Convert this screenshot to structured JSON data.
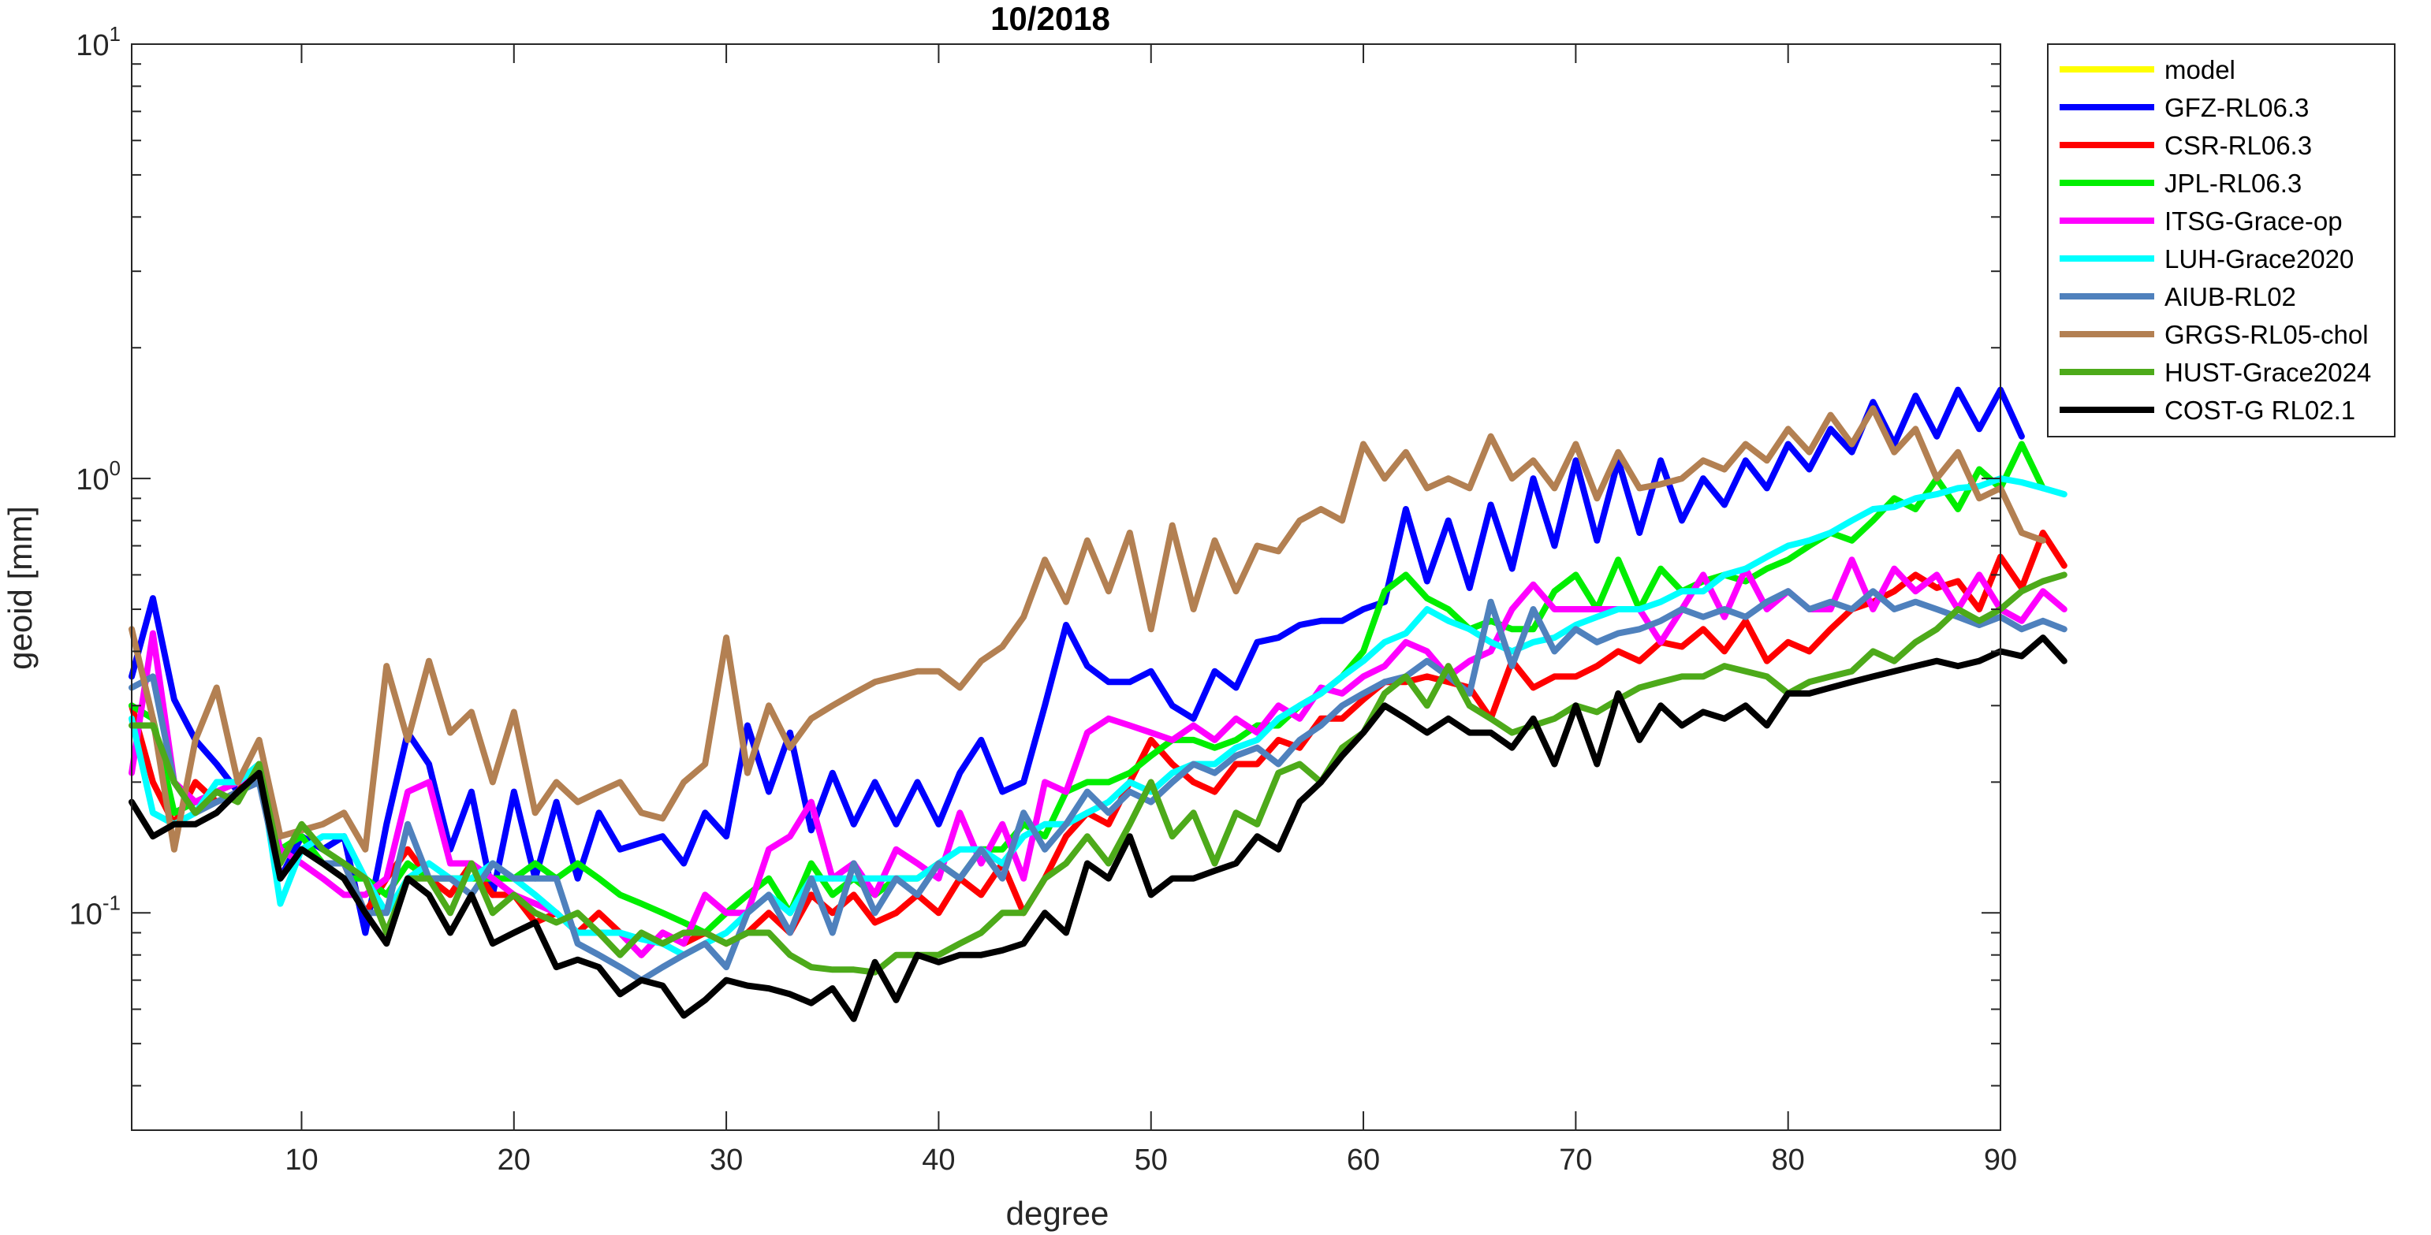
{
  "chart_data": {
    "type": "line",
    "title": "10/2018",
    "xlabel": "degree",
    "ylabel": "geoid [mm]",
    "xlim": [
      2,
      90
    ],
    "ylim": [
      0.0316,
      10
    ],
    "yscale": "log",
    "xticks": [
      10,
      20,
      30,
      40,
      50,
      60,
      70,
      80,
      90
    ],
    "xtick_labels": [
      "10",
      "20",
      "30",
      "40",
      "50",
      "60",
      "70",
      "80",
      "90"
    ],
    "yticks": [
      0.1,
      1,
      10
    ],
    "ytick_labels": [
      {
        "base": "10",
        "exp": "-1"
      },
      {
        "base": "10",
        "exp": "0"
      },
      {
        "base": "10",
        "exp": "1"
      }
    ],
    "grid": false,
    "legend_position": "outside-right",
    "x_start": 2,
    "series": [
      {
        "name": "model",
        "color": "#FFFF00",
        "values": []
      },
      {
        "name": "GFZ-RL06.3",
        "color": "#0000FF",
        "values": [
          0.35,
          0.53,
          0.31,
          0.25,
          0.22,
          0.19,
          0.22,
          0.12,
          0.15,
          0.14,
          0.15,
          0.09,
          0.16,
          0.26,
          0.22,
          0.14,
          0.19,
          0.11,
          0.19,
          0.12,
          0.18,
          0.12,
          0.17,
          0.14,
          0.145,
          0.15,
          0.13,
          0.17,
          0.15,
          0.27,
          0.19,
          0.26,
          0.155,
          0.21,
          0.16,
          0.2,
          0.16,
          0.2,
          0.16,
          0.21,
          0.25,
          0.19,
          0.2,
          0.3,
          0.46,
          0.37,
          0.34,
          0.34,
          0.36,
          0.3,
          0.28,
          0.36,
          0.33,
          0.42,
          0.43,
          0.46,
          0.47,
          0.47,
          0.5,
          0.52,
          0.85,
          0.58,
          0.8,
          0.56,
          0.87,
          0.62,
          1.0,
          0.7,
          1.1,
          0.72,
          1.1,
          0.75,
          1.1,
          0.8,
          1.0,
          0.87,
          1.1,
          0.95,
          1.2,
          1.05,
          1.3,
          1.15,
          1.5,
          1.2,
          1.55,
          1.25,
          1.6,
          1.3,
          1.6,
          1.25
        ]
      },
      {
        "name": "CSR-RL06.3",
        "color": "#FF0000",
        "values": [
          0.3,
          0.2,
          0.16,
          0.2,
          0.18,
          0.19,
          0.22,
          0.12,
          0.14,
          0.13,
          0.13,
          0.1,
          0.12,
          0.14,
          0.12,
          0.11,
          0.13,
          0.11,
          0.11,
          0.095,
          0.1,
          0.09,
          0.1,
          0.09,
          0.08,
          0.09,
          0.085,
          0.09,
          0.085,
          0.09,
          0.1,
          0.09,
          0.11,
          0.1,
          0.11,
          0.095,
          0.1,
          0.11,
          0.1,
          0.12,
          0.11,
          0.13,
          0.1,
          0.12,
          0.15,
          0.17,
          0.16,
          0.2,
          0.25,
          0.22,
          0.2,
          0.19,
          0.22,
          0.22,
          0.25,
          0.24,
          0.28,
          0.28,
          0.31,
          0.34,
          0.34,
          0.35,
          0.34,
          0.33,
          0.28,
          0.38,
          0.33,
          0.35,
          0.35,
          0.37,
          0.4,
          0.38,
          0.42,
          0.41,
          0.45,
          0.4,
          0.47,
          0.38,
          0.42,
          0.4,
          0.45,
          0.5,
          0.52,
          0.55,
          0.6,
          0.56,
          0.58,
          0.5,
          0.66,
          0.56,
          0.75,
          0.63
        ]
      },
      {
        "name": "JPL-RL06.3",
        "color": "#00EE00",
        "values": [
          0.3,
          0.28,
          0.17,
          0.18,
          0.19,
          0.2,
          0.22,
          0.14,
          0.15,
          0.13,
          0.12,
          0.12,
          0.11,
          0.13,
          0.12,
          0.12,
          0.12,
          0.12,
          0.12,
          0.13,
          0.12,
          0.13,
          0.12,
          0.11,
          0.105,
          0.1,
          0.095,
          0.09,
          0.1,
          0.11,
          0.12,
          0.1,
          0.13,
          0.11,
          0.12,
          0.11,
          0.12,
          0.12,
          0.13,
          0.12,
          0.14,
          0.14,
          0.16,
          0.15,
          0.19,
          0.2,
          0.2,
          0.21,
          0.23,
          0.25,
          0.25,
          0.24,
          0.25,
          0.27,
          0.27,
          0.3,
          0.32,
          0.35,
          0.4,
          0.55,
          0.6,
          0.53,
          0.5,
          0.45,
          0.47,
          0.45,
          0.45,
          0.55,
          0.6,
          0.5,
          0.65,
          0.5,
          0.62,
          0.55,
          0.58,
          0.6,
          0.58,
          0.62,
          0.65,
          0.7,
          0.75,
          0.72,
          0.8,
          0.9,
          0.85,
          1.0,
          0.85,
          1.05,
          0.95,
          1.2,
          0.95
        ]
      },
      {
        "name": "ITSG-Grace-op",
        "color": "#FF00FF",
        "values": [
          0.21,
          0.44,
          0.2,
          0.18,
          0.19,
          0.2,
          0.21,
          0.14,
          0.13,
          0.12,
          0.11,
          0.11,
          0.12,
          0.19,
          0.2,
          0.13,
          0.13,
          0.12,
          0.11,
          0.105,
          0.1,
          0.09,
          0.09,
          0.09,
          0.08,
          0.09,
          0.085,
          0.11,
          0.1,
          0.1,
          0.14,
          0.15,
          0.18,
          0.12,
          0.13,
          0.11,
          0.14,
          0.13,
          0.12,
          0.17,
          0.13,
          0.16,
          0.12,
          0.2,
          0.19,
          0.26,
          0.28,
          0.27,
          0.26,
          0.25,
          0.27,
          0.25,
          0.28,
          0.26,
          0.3,
          0.28,
          0.33,
          0.32,
          0.35,
          0.37,
          0.42,
          0.4,
          0.35,
          0.38,
          0.4,
          0.5,
          0.57,
          0.5,
          0.5,
          0.5,
          0.5,
          0.5,
          0.42,
          0.5,
          0.6,
          0.48,
          0.62,
          0.5,
          0.55,
          0.5,
          0.5,
          0.65,
          0.5,
          0.62,
          0.55,
          0.6,
          0.5,
          0.6,
          0.5,
          0.47,
          0.55,
          0.5
        ]
      },
      {
        "name": "LUH-Grace2020",
        "color": "#00FFFF",
        "values": [
          0.28,
          0.17,
          0.16,
          0.17,
          0.2,
          0.2,
          0.22,
          0.105,
          0.14,
          0.15,
          0.15,
          0.12,
          0.1,
          0.12,
          0.13,
          0.12,
          0.12,
          0.13,
          0.12,
          0.11,
          0.1,
          0.09,
          0.09,
          0.09,
          0.087,
          0.085,
          0.08,
          0.085,
          0.09,
          0.1,
          0.11,
          0.1,
          0.12,
          0.12,
          0.12,
          0.12,
          0.12,
          0.12,
          0.13,
          0.14,
          0.14,
          0.13,
          0.15,
          0.16,
          0.16,
          0.17,
          0.18,
          0.2,
          0.19,
          0.21,
          0.22,
          0.22,
          0.24,
          0.25,
          0.28,
          0.3,
          0.32,
          0.35,
          0.38,
          0.42,
          0.44,
          0.5,
          0.47,
          0.45,
          0.42,
          0.4,
          0.42,
          0.43,
          0.46,
          0.48,
          0.5,
          0.5,
          0.52,
          0.55,
          0.55,
          0.6,
          0.62,
          0.66,
          0.7,
          0.72,
          0.75,
          0.8,
          0.85,
          0.86,
          0.9,
          0.92,
          0.95,
          0.96,
          1.0,
          0.98,
          0.95,
          0.92
        ]
      },
      {
        "name": "AIUB-RL02",
        "color": "#4F81BD",
        "values": [
          0.33,
          0.35,
          0.2,
          0.17,
          0.18,
          0.19,
          0.2,
          0.12,
          0.14,
          0.13,
          0.13,
          0.1,
          0.1,
          0.16,
          0.12,
          0.12,
          0.11,
          0.13,
          0.12,
          0.12,
          0.12,
          0.085,
          0.08,
          0.075,
          0.07,
          0.075,
          0.08,
          0.085,
          0.075,
          0.1,
          0.11,
          0.09,
          0.12,
          0.09,
          0.13,
          0.1,
          0.12,
          0.11,
          0.13,
          0.12,
          0.14,
          0.12,
          0.17,
          0.14,
          0.16,
          0.19,
          0.17,
          0.19,
          0.18,
          0.2,
          0.22,
          0.21,
          0.23,
          0.24,
          0.22,
          0.25,
          0.27,
          0.3,
          0.32,
          0.34,
          0.35,
          0.38,
          0.35,
          0.32,
          0.52,
          0.37,
          0.5,
          0.4,
          0.45,
          0.42,
          0.44,
          0.45,
          0.47,
          0.5,
          0.48,
          0.5,
          0.48,
          0.52,
          0.55,
          0.5,
          0.52,
          0.5,
          0.55,
          0.5,
          0.52,
          0.5,
          0.48,
          0.46,
          0.48,
          0.45,
          0.47,
          0.45
        ]
      },
      {
        "name": "GRGS-RL05-chol",
        "color": "#B38052",
        "values": [
          0.45,
          0.28,
          0.14,
          0.25,
          0.33,
          0.2,
          0.25,
          0.15,
          0.155,
          0.16,
          0.17,
          0.14,
          0.37,
          0.25,
          0.38,
          0.26,
          0.29,
          0.2,
          0.29,
          0.17,
          0.2,
          0.18,
          0.19,
          0.2,
          0.17,
          0.165,
          0.2,
          0.22,
          0.43,
          0.21,
          0.3,
          0.24,
          0.28,
          0.3,
          0.32,
          0.34,
          0.35,
          0.36,
          0.36,
          0.33,
          0.38,
          0.41,
          0.48,
          0.65,
          0.52,
          0.72,
          0.55,
          0.75,
          0.45,
          0.78,
          0.5,
          0.72,
          0.55,
          0.7,
          0.68,
          0.8,
          0.85,
          0.8,
          1.2,
          1.0,
          1.15,
          0.95,
          1.0,
          0.95,
          1.25,
          1.0,
          1.1,
          0.95,
          1.2,
          0.9,
          1.15,
          0.95,
          0.97,
          1.0,
          1.1,
          1.05,
          1.2,
          1.1,
          1.3,
          1.15,
          1.4,
          1.2,
          1.45,
          1.15,
          1.3,
          1.0,
          1.15,
          0.9,
          0.95,
          0.75,
          0.72
        ]
      },
      {
        "name": "HUST-Grace2024",
        "color": "#4DAA1A",
        "values": [
          0.27,
          0.27,
          0.2,
          0.17,
          0.19,
          0.18,
          0.22,
          0.13,
          0.16,
          0.14,
          0.13,
          0.12,
          0.09,
          0.12,
          0.12,
          0.1,
          0.13,
          0.1,
          0.11,
          0.1,
          0.095,
          0.1,
          0.09,
          0.08,
          0.09,
          0.085,
          0.09,
          0.09,
          0.085,
          0.09,
          0.09,
          0.08,
          0.075,
          0.074,
          0.074,
          0.073,
          0.08,
          0.08,
          0.08,
          0.085,
          0.09,
          0.1,
          0.1,
          0.12,
          0.13,
          0.15,
          0.13,
          0.16,
          0.2,
          0.15,
          0.17,
          0.13,
          0.17,
          0.16,
          0.21,
          0.22,
          0.2,
          0.24,
          0.26,
          0.32,
          0.35,
          0.3,
          0.37,
          0.3,
          0.28,
          0.26,
          0.27,
          0.28,
          0.3,
          0.29,
          0.31,
          0.33,
          0.34,
          0.35,
          0.35,
          0.37,
          0.36,
          0.35,
          0.32,
          0.34,
          0.35,
          0.36,
          0.4,
          0.38,
          0.42,
          0.45,
          0.5,
          0.47,
          0.5,
          0.55,
          0.58,
          0.6
        ]
      },
      {
        "name": "COST-G RL02.1",
        "color": "#000000",
        "values": [
          0.18,
          0.15,
          0.16,
          0.16,
          0.17,
          0.19,
          0.21,
          0.12,
          0.14,
          0.13,
          0.12,
          0.1,
          0.085,
          0.12,
          0.11,
          0.09,
          0.11,
          0.085,
          0.09,
          0.095,
          0.075,
          0.078,
          0.075,
          0.065,
          0.07,
          0.068,
          0.058,
          0.063,
          0.07,
          0.068,
          0.067,
          0.065,
          0.062,
          0.067,
          0.057,
          0.077,
          0.063,
          0.08,
          0.077,
          0.08,
          0.08,
          0.082,
          0.085,
          0.1,
          0.09,
          0.13,
          0.12,
          0.15,
          0.11,
          0.12,
          0.12,
          0.125,
          0.13,
          0.15,
          0.14,
          0.18,
          0.2,
          0.23,
          0.26,
          0.3,
          0.28,
          0.26,
          0.28,
          0.26,
          0.26,
          0.24,
          0.28,
          0.22,
          0.3,
          0.22,
          0.32,
          0.25,
          0.3,
          0.27,
          0.29,
          0.28,
          0.3,
          0.27,
          0.32,
          0.32,
          0.33,
          0.34,
          0.35,
          0.36,
          0.37,
          0.38,
          0.37,
          0.38,
          0.4,
          0.39,
          0.43,
          0.38
        ]
      }
    ]
  }
}
